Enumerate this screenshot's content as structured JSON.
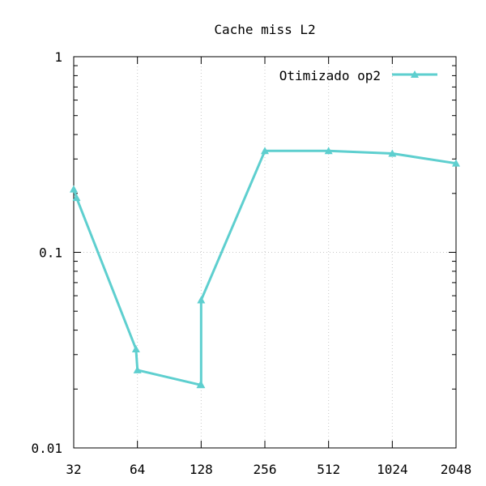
{
  "chart_data": {
    "type": "line",
    "title": "Cache miss L2",
    "xlabel": "",
    "ylabel": "",
    "x_scale": "log2",
    "y_scale": "log10",
    "xlim": [
      32,
      2048
    ],
    "ylim": [
      0.01,
      1
    ],
    "x_ticks": [
      32,
      64,
      128,
      256,
      512,
      1024,
      2048
    ],
    "x_tick_labels": [
      "32",
      "64",
      "128",
      "256",
      "512",
      "1024",
      "2048"
    ],
    "y_ticks": [
      0.01,
      0.1,
      1
    ],
    "y_tick_labels": [
      "0.01",
      "0.1",
      "1"
    ],
    "grid": true,
    "legend_position": "top-right",
    "series": [
      {
        "name": "Otimizado op2",
        "color": "#5ecfcf",
        "marker": "triangle",
        "x": [
          32,
          33,
          63,
          64,
          127,
          128,
          128,
          256,
          512,
          1024,
          2048
        ],
        "y": [
          0.21,
          0.19,
          0.032,
          0.025,
          0.021,
          0.021,
          0.057,
          0.33,
          0.33,
          0.32,
          0.285
        ]
      }
    ]
  }
}
